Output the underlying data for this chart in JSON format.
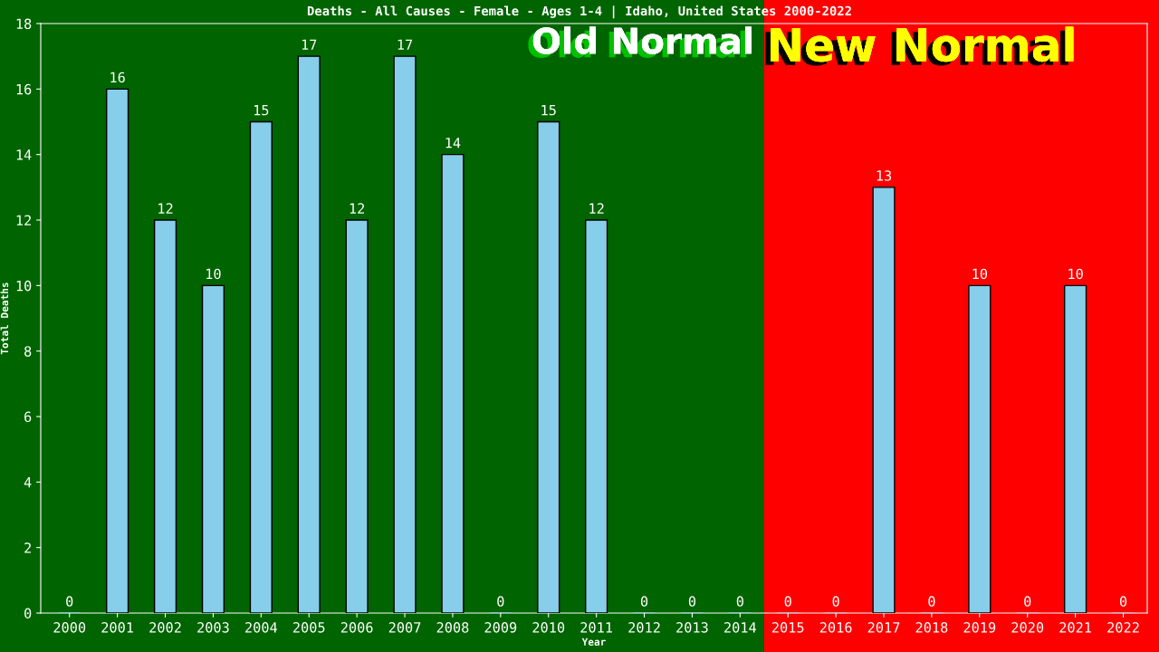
{
  "chart_data": {
    "type": "bar",
    "title": "Deaths - All Causes - Female - Ages 1-4 | Idaho, United States 2000-2022",
    "xlabel": "Year",
    "ylabel": "Total Deaths",
    "categories": [
      "2000",
      "2001",
      "2002",
      "2003",
      "2004",
      "2005",
      "2006",
      "2007",
      "2008",
      "2009",
      "2010",
      "2011",
      "2012",
      "2013",
      "2014",
      "2015",
      "2016",
      "2017",
      "2018",
      "2019",
      "2020",
      "2021",
      "2022"
    ],
    "values": [
      0,
      16,
      12,
      10,
      15,
      17,
      12,
      17,
      14,
      0,
      15,
      12,
      0,
      0,
      0,
      0,
      0,
      13,
      0,
      10,
      0,
      10,
      0
    ],
    "color": "#87ceeb",
    "ylim": [
      0,
      18
    ],
    "yticks": [
      0,
      2,
      4,
      6,
      8,
      10,
      12,
      14,
      16,
      18
    ],
    "grid": false,
    "data_labels": true,
    "bands": [
      {
        "axis": "x",
        "from": "2000",
        "to": "2014",
        "label": "Old Normal",
        "color": "#006400"
      },
      {
        "axis": "x",
        "from": "2015",
        "to": "2022",
        "label": "New Normal",
        "color": "#ff0000"
      }
    ]
  }
}
